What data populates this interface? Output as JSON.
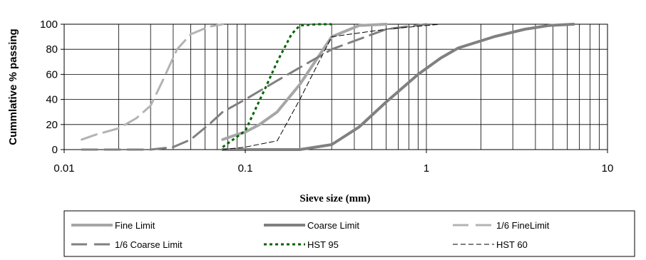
{
  "chart_data": {
    "type": "line",
    "title": "",
    "xlabel": "Sieve size (mm)",
    "ylabel": "Cummlative % passing",
    "x_scale": "log",
    "xlim": [
      0.01,
      10
    ],
    "ylim": [
      0,
      100
    ],
    "x_ticks": [
      "0.01",
      "0.1",
      "1",
      "10"
    ],
    "y_ticks": [
      "0",
      "20",
      "40",
      "60",
      "80",
      "100"
    ],
    "grid": true,
    "legend_position": "bottom",
    "series": [
      {
        "name": "Fine Limit",
        "color": "#a6a6a6",
        "style": "solid",
        "width": 4,
        "x": [
          0.075,
          0.09,
          0.1,
          0.12,
          0.15,
          0.2,
          0.3,
          0.425,
          0.6
        ],
        "y": [
          8,
          12,
          14,
          20,
          30,
          52,
          90,
          99,
          100
        ]
      },
      {
        "name": "Coarse Limit",
        "color": "#808080",
        "style": "solid",
        "width": 4,
        "x": [
          0.075,
          0.15,
          0.2,
          0.3,
          0.425,
          0.6,
          0.9,
          1.2,
          1.5,
          2.36,
          3.5,
          4.75,
          6.5
        ],
        "y": [
          0,
          0,
          0,
          4,
          18,
          38,
          60,
          73,
          81,
          90,
          96,
          99,
          100
        ]
      },
      {
        "name": "1/6 FineLimit",
        "color": "#b3b3b3",
        "style": "longdash",
        "width": 3,
        "x": [
          0.0125,
          0.015,
          0.02,
          0.025,
          0.03,
          0.035,
          0.042,
          0.05,
          0.063,
          0.075
        ],
        "y": [
          8,
          12,
          17,
          25,
          35,
          55,
          80,
          92,
          98,
          100
        ]
      },
      {
        "name": "1/6 Coarse Limit",
        "color": "#808080",
        "style": "longdash",
        "width": 3,
        "x": [
          0.0125,
          0.02,
          0.03,
          0.04,
          0.05,
          0.063,
          0.075,
          0.1,
          0.15,
          0.3,
          0.6,
          1.0
        ],
        "y": [
          0,
          0,
          0,
          2,
          8,
          20,
          30,
          40,
          55,
          80,
          96,
          100
        ]
      },
      {
        "name": "HST 95",
        "color": "#006400",
        "style": "dotted",
        "width": 3,
        "x": [
          0.075,
          0.1,
          0.13,
          0.15,
          0.18,
          0.2,
          0.25,
          0.3
        ],
        "y": [
          2,
          15,
          50,
          70,
          92,
          99,
          100,
          100
        ]
      },
      {
        "name": "HST 60",
        "color": "#000000",
        "style": "dashed",
        "width": 1,
        "x": [
          0.075,
          0.1,
          0.15,
          0.2,
          0.3,
          0.6,
          1.0,
          1.2
        ],
        "y": [
          0,
          2,
          7,
          40,
          90,
          96,
          99,
          100
        ]
      }
    ]
  }
}
